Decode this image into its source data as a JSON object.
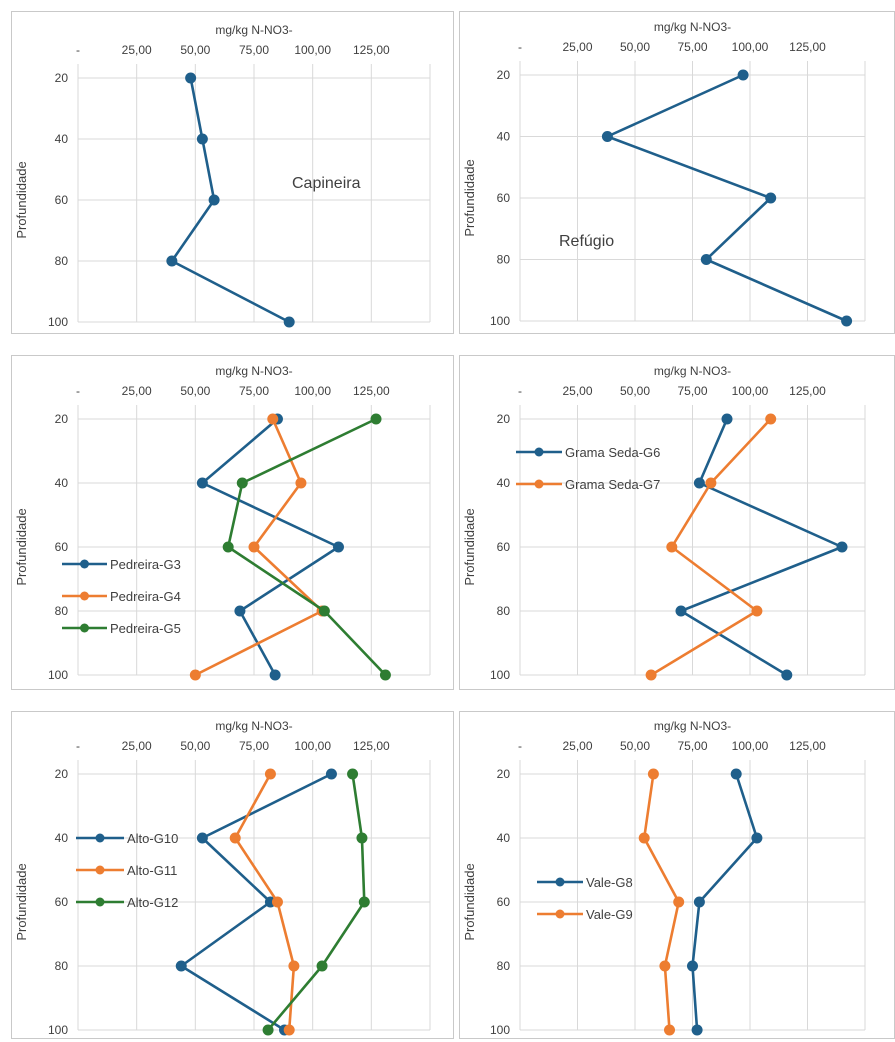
{
  "chart_data": [
    {
      "type": "line",
      "title": "",
      "xlabel": "mg/kg N-NO3-",
      "ylabel": "Profundidade",
      "x_ticks": [
        "-",
        "25,00",
        "50,00",
        "75,00",
        "100,00",
        "125,00"
      ],
      "xlim": [
        0,
        150
      ],
      "y_ticks": [
        "20",
        "40",
        "60",
        "80",
        "100"
      ],
      "ylim": [
        20,
        100
      ],
      "y_inverted": true,
      "annotation": "Capineira",
      "legend": false,
      "series": [
        {
          "color": "#1f5f8b",
          "points": [
            [
              48,
              20
            ],
            [
              53,
              40
            ],
            [
              58,
              60
            ],
            [
              40,
              80
            ],
            [
              90,
              100
            ]
          ]
        }
      ]
    },
    {
      "type": "line",
      "title": "",
      "xlabel": "mg/kg N-NO3-",
      "ylabel": "Profundidade",
      "x_ticks": [
        "-",
        "25,00",
        "50,00",
        "75,00",
        "100,00",
        "125,00"
      ],
      "xlim": [
        0,
        150
      ],
      "y_ticks": [
        "20",
        "40",
        "60",
        "80",
        "100"
      ],
      "ylim": [
        20,
        100
      ],
      "y_inverted": true,
      "annotation": "Refúgio",
      "legend": false,
      "series": [
        {
          "color": "#1f5f8b",
          "points": [
            [
              97,
              20
            ],
            [
              38,
              40
            ],
            [
              109,
              60
            ],
            [
              81,
              80
            ],
            [
              142,
              100
            ]
          ]
        }
      ]
    },
    {
      "type": "line",
      "title": "",
      "xlabel": "mg/kg N-NO3-",
      "ylabel": "Profundidade",
      "x_ticks": [
        "-",
        "25,00",
        "50,00",
        "75,00",
        "100,00",
        "125,00"
      ],
      "xlim": [
        0,
        150
      ],
      "y_ticks": [
        "20",
        "40",
        "60",
        "80",
        "100"
      ],
      "ylim": [
        20,
        100
      ],
      "y_inverted": true,
      "annotation": "",
      "legend": true,
      "legend_position": "left",
      "series": [
        {
          "name": "Pedreira-G3",
          "color": "#1f5f8b",
          "points": [
            [
              85,
              20
            ],
            [
              53,
              40
            ],
            [
              111,
              60
            ],
            [
              69,
              80
            ],
            [
              84,
              100
            ]
          ]
        },
        {
          "name": "Pedreira-G4",
          "color": "#ed7d31",
          "points": [
            [
              83,
              20
            ],
            [
              95,
              40
            ],
            [
              75,
              60
            ],
            [
              104,
              80
            ],
            [
              50,
              100
            ]
          ]
        },
        {
          "name": "Pedreira-G5",
          "color": "#2e7d32",
          "points": [
            [
              127,
              20
            ],
            [
              70,
              40
            ],
            [
              64,
              60
            ],
            [
              105,
              80
            ],
            [
              131,
              100
            ]
          ]
        }
      ]
    },
    {
      "type": "line",
      "title": "",
      "xlabel": "mg/kg N-NO3-",
      "ylabel": "Profundidade",
      "x_ticks": [
        "-",
        "25,00",
        "50,00",
        "75,00",
        "100,00",
        "125,00"
      ],
      "xlim": [
        0,
        150
      ],
      "y_ticks": [
        "20",
        "40",
        "60",
        "80",
        "100"
      ],
      "ylim": [
        20,
        100
      ],
      "y_inverted": true,
      "annotation": "",
      "legend": true,
      "legend_position": "top-left",
      "series": [
        {
          "name": "Grama Seda-G6",
          "color": "#1f5f8b",
          "points": [
            [
              90,
              20
            ],
            [
              78,
              40
            ],
            [
              140,
              60
            ],
            [
              70,
              80
            ],
            [
              116,
              100
            ]
          ]
        },
        {
          "name": "Grama Seda-G7",
          "color": "#ed7d31",
          "points": [
            [
              109,
              20
            ],
            [
              83,
              40
            ],
            [
              66,
              60
            ],
            [
              103,
              80
            ],
            [
              57,
              100
            ]
          ]
        }
      ]
    },
    {
      "type": "line",
      "title": "",
      "xlabel": "mg/kg N-NO3-",
      "ylabel": "Profundidade",
      "x_ticks": [
        "-",
        "25,00",
        "50,00",
        "75,00",
        "100,00",
        "125,00"
      ],
      "xlim": [
        0,
        150
      ],
      "y_ticks": [
        "20",
        "40",
        "60",
        "80",
        "100"
      ],
      "ylim": [
        20,
        100
      ],
      "y_inverted": true,
      "annotation": "",
      "legend": true,
      "legend_position": "left",
      "series": [
        {
          "name": "Alto-G10",
          "color": "#1f5f8b",
          "points": [
            [
              108,
              20
            ],
            [
              53,
              40
            ],
            [
              82,
              60
            ],
            [
              44,
              80
            ],
            [
              88,
              100
            ]
          ]
        },
        {
          "name": "Alto-G11",
          "color": "#ed7d31",
          "points": [
            [
              82,
              20
            ],
            [
              67,
              40
            ],
            [
              85,
              60
            ],
            [
              92,
              80
            ],
            [
              90,
              100
            ]
          ]
        },
        {
          "name": "Alto-G12",
          "color": "#2e7d32",
          "points": [
            [
              117,
              20
            ],
            [
              121,
              40
            ],
            [
              122,
              60
            ],
            [
              104,
              80
            ],
            [
              81,
              100
            ]
          ]
        }
      ]
    },
    {
      "type": "line",
      "title": "",
      "xlabel": "mg/kg N-NO3-",
      "ylabel": "Profundidade",
      "x_ticks": [
        "-",
        "25,00",
        "50,00",
        "75,00",
        "100,00",
        "125,00"
      ],
      "xlim": [
        0,
        150
      ],
      "y_ticks": [
        "20",
        "40",
        "60",
        "80",
        "100"
      ],
      "ylim": [
        20,
        100
      ],
      "y_inverted": true,
      "annotation": "",
      "legend": true,
      "legend_position": "left",
      "series": [
        {
          "name": "Vale-G8",
          "color": "#1f5f8b",
          "points": [
            [
              94,
              20
            ],
            [
              103,
              40
            ],
            [
              78,
              60
            ],
            [
              75,
              80
            ],
            [
              77,
              100
            ]
          ]
        },
        {
          "name": "Vale-G9",
          "color": "#ed7d31",
          "points": [
            [
              58,
              20
            ],
            [
              54,
              40
            ],
            [
              69,
              60
            ],
            [
              63,
              80
            ],
            [
              65,
              100
            ]
          ]
        }
      ]
    }
  ]
}
